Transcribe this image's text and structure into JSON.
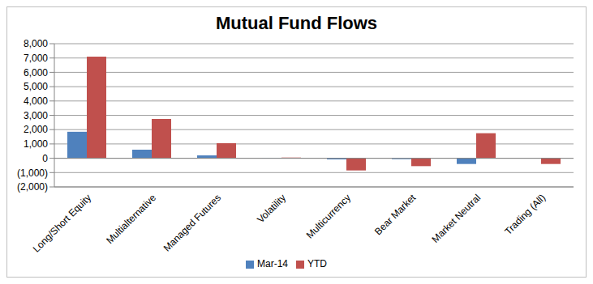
{
  "chart_data": {
    "type": "bar",
    "title": "Mutual Fund Flows",
    "categories": [
      "Long/Short Equity",
      "Multialternative",
      "Managed Futures",
      "Volatility",
      "Multicurrency",
      "Bear Market",
      "Market Neutral",
      "Trading (All)"
    ],
    "series": [
      {
        "name": "Mar-14",
        "color": "#4f81bd",
        "values": [
          1850,
          600,
          200,
          30,
          -80,
          -60,
          -400,
          0
        ]
      },
      {
        "name": "YTD",
        "color": "#c0504d",
        "values": [
          7100,
          2750,
          1050,
          50,
          -850,
          -550,
          1750,
          -400
        ]
      }
    ],
    "ylim": [
      -2000,
      8000
    ],
    "yticks": [
      {
        "value": -2000,
        "label": "(2,000)"
      },
      {
        "value": -1000,
        "label": "(1,000)"
      },
      0,
      {
        "value": 1000,
        "label": "1,000"
      },
      {
        "value": 2000,
        "label": "2,000"
      },
      {
        "value": 3000,
        "label": "3,000"
      },
      {
        "value": 4000,
        "label": "4,000"
      },
      {
        "value": 5000,
        "label": "5,000"
      },
      {
        "value": 6000,
        "label": "6,000"
      },
      {
        "value": 7000,
        "label": "7,000"
      },
      {
        "value": 8000,
        "label": "8,000"
      }
    ],
    "grid": true,
    "legend": "bottom"
  }
}
